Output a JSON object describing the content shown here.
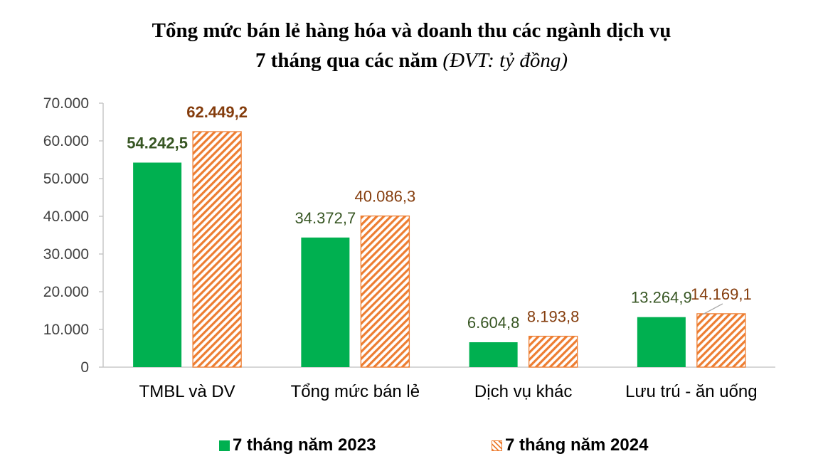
{
  "chart_data": {
    "type": "bar",
    "title_main": "Tổng mức bán lẻ hàng hóa và doanh thu các ngành dịch vụ",
    "title_line2": "7 tháng qua các năm",
    "title_unit": "(ĐVT: tỷ đồng)",
    "categories": [
      "TMBL và DV",
      "Tổng mức bán lẻ",
      "Dịch vụ khác",
      "Lưu trú - ăn uống"
    ],
    "series": [
      {
        "name": "7 tháng năm 2023",
        "values": [
          54242.5,
          34372.7,
          6604.8,
          13264.9
        ],
        "labels": [
          "54.242,5",
          "34.372,7",
          "6.604,8",
          "13.264,9"
        ],
        "color": "#00b050",
        "label_color": "#375623"
      },
      {
        "name": "7 tháng năm 2024",
        "values": [
          62449.2,
          40086.3,
          8193.8,
          14169.1
        ],
        "labels": [
          "62.449,2",
          "40.086,3",
          "8.193,8",
          "14.169,1"
        ],
        "color": "#ed7d31",
        "label_color": "#843c0c",
        "pattern": "diagonal-hatch"
      }
    ],
    "yticks": [
      "0",
      "10.000",
      "20.000",
      "30.000",
      "40.000",
      "50.000",
      "60.000",
      "70.000"
    ],
    "ylim": [
      0,
      70000
    ],
    "legend_position": "bottom",
    "grid": false
  }
}
